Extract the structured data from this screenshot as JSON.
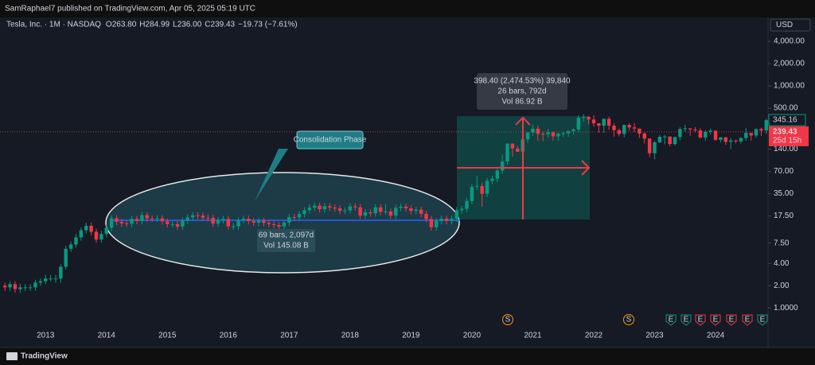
{
  "header": {
    "publisher": "SamRaphael7 published on TradingView.com, Apr 05, 2025 05:19 UTC",
    "symbol": "Tesla, Inc. · 1M · NASDAQ",
    "ohlc": [
      {
        "key": "O",
        "value": "263.80"
      },
      {
        "key": "H",
        "value": "284.99"
      },
      {
        "key": "L",
        "value": "236.00"
      },
      {
        "key": "C",
        "value": "239.43"
      }
    ],
    "change": "−19.73 (−7.61%)",
    "currency": "USD"
  },
  "chart_data": {
    "type": "candlestick",
    "log_scale": true,
    "up_color": "#089981",
    "down_color": "#f23645",
    "categories": [
      null,
      null,
      null,
      null,
      null,
      null,
      null,
      null,
      "2013",
      null,
      null,
      null,
      null,
      null,
      null,
      null,
      null,
      null,
      null,
      null,
      "2014",
      null,
      null,
      null,
      null,
      null,
      null,
      null,
      null,
      null,
      null,
      null,
      "2015",
      null,
      null,
      null,
      null,
      null,
      null,
      null,
      null,
      null,
      null,
      null,
      "2016",
      null,
      null,
      null,
      null,
      null,
      null,
      null,
      null,
      null,
      null,
      null,
      "2017",
      null,
      null,
      null,
      null,
      null,
      null,
      null,
      null,
      null,
      null,
      null,
      "2018",
      null,
      null,
      null,
      null,
      null,
      null,
      null,
      null,
      null,
      null,
      null,
      "2019",
      null,
      null,
      null,
      null,
      null,
      null,
      null,
      null,
      null,
      null,
      null,
      "2020",
      null,
      null,
      null,
      null,
      null,
      null,
      null,
      null,
      null,
      null,
      null,
      "2021",
      null,
      null,
      null,
      null,
      null,
      null,
      null,
      null,
      null,
      null,
      null,
      "2022",
      null,
      null,
      null,
      null,
      null,
      null,
      null,
      null,
      null,
      null,
      null,
      "2023",
      null,
      null,
      null,
      null,
      null,
      null,
      null,
      null,
      null,
      null,
      null,
      "2024",
      null,
      null,
      null,
      null,
      null,
      null,
      null,
      null,
      null,
      null
    ],
    "open": [
      2.0,
      1.9,
      2.1,
      1.8,
      1.9,
      1.9,
      1.9,
      2.2,
      2.3,
      2.5,
      2.5,
      2.5,
      3.6,
      6.3,
      7.2,
      9.0,
      11.2,
      12.9,
      10.7,
      8.4,
      10.0,
      12.1,
      16.3,
      14.6,
      13.9,
      13.8,
      16.0,
      15.0,
      18.0,
      16.2,
      16.1,
      16.3,
      14.8,
      13.6,
      13.6,
      12.6,
      15.1,
      16.7,
      17.9,
      17.7,
      16.6,
      16.5,
      13.8,
      15.4,
      16.0,
      12.7,
      12.7,
      15.3,
      16.1,
      14.9,
      14.2,
      15.1,
      14.1,
      13.6,
      13.2,
      12.6,
      14.2,
      16.9,
      16.7,
      18.6,
      20.9,
      22.7,
      24.1,
      21.6,
      23.7,
      22.7,
      22.1,
      20.6,
      20.8,
      23.6,
      22.9,
      17.7,
      19.6,
      19.0,
      22.9,
      19.9,
      20.1,
      17.7,
      22.5,
      23.4,
      22.2,
      20.5,
      21.3,
      18.7,
      15.9,
      12.3,
      14.9,
      16.1,
      15.0,
      16.1,
      20.9,
      21.9,
      27.9,
      43.4,
      44.5,
      34.9,
      52.1,
      55.7,
      72.0,
      95.4,
      166.1,
      143.0,
      129.3,
      189.2,
      235.2,
      264.5,
      225.2,
      222.6,
      236.5,
      208.4,
      226.6,
      229.1,
      245.2,
      258.5,
      371.3,
      381.6,
      352.3,
      312.2,
      290.1,
      359.2,
      290.3,
      252.8,
      224.5,
      297.1,
      275.6,
      265.3,
      227.5,
      194.7,
      123.2,
      173.2,
      205.7,
      207.5,
      164.3,
      203.9,
      261.8,
      267.4,
      258.1,
      250.2,
      200.8,
      240.1,
      248.5,
      187.3,
      201.9,
      175.8,
      183.3,
      178.1,
      197.9,
      232.1,
      214.1,
      261.6,
      249.9
    ],
    "high": [
      2.2,
      2.3,
      2.3,
      2.1,
      2.1,
      2.1,
      2.4,
      2.5,
      2.8,
      2.8,
      2.8,
      3.9,
      6.9,
      7.9,
      9.9,
      12.3,
      14.2,
      14.2,
      11.8,
      11.0,
      13.3,
      17.9,
      17.9,
      16.1,
      15.3,
      17.6,
      17.6,
      19.8,
      19.8,
      17.8,
      17.9,
      17.9,
      16.3,
      15.0,
      15.0,
      16.6,
      18.4,
      19.7,
      19.7,
      19.5,
      18.3,
      18.2,
      16.9,
      17.6,
      17.6,
      14.0,
      16.8,
      17.7,
      17.7,
      16.4,
      16.6,
      16.6,
      15.5,
      15.0,
      14.5,
      15.6,
      18.6,
      18.6,
      20.5,
      23.0,
      25.0,
      26.5,
      26.5,
      26.1,
      26.1,
      25.0,
      24.3,
      22.9,
      26.0,
      26.0,
      25.2,
      21.6,
      21.6,
      25.2,
      25.2,
      25.5,
      22.1,
      24.8,
      25.7,
      25.7,
      24.4,
      23.4,
      23.4,
      20.6,
      17.5,
      16.4,
      17.7,
      17.7,
      17.7,
      23.0,
      24.1,
      30.7,
      47.7,
      61.0,
      49.0,
      57.3,
      61.3,
      79.2,
      119,
      167.5,
      167.5,
      155,
      202,
      239,
      300,
      293,
      241,
      260,
      241,
      232,
      241,
      250,
      266,
      402,
      414,
      392,
      402,
      315,
      364,
      384,
      315,
      265,
      298,
      314,
      314,
      257,
      237,
      196,
      180,
      217,
      218,
      208,
      204,
      276,
      299,
      267,
      278,
      268,
      252,
      265,
      252,
      205,
      205,
      198,
      187,
      203,
      271,
      232,
      265,
      273,
      361
    ],
    "low": [
      1.7,
      1.7,
      1.6,
      1.6,
      1.7,
      1.7,
      1.7,
      2.0,
      2.1,
      2.3,
      2.2,
      2.2,
      3.3,
      5.7,
      6.5,
      8.1,
      10.1,
      9.6,
      7.6,
      7.6,
      9.0,
      10.9,
      13.1,
      12.5,
      12.4,
      12.4,
      13.5,
      13.5,
      14.6,
      14.5,
      14.5,
      13.3,
      12.2,
      12.2,
      11.3,
      11.3,
      13.6,
      15.0,
      15.9,
      14.9,
      14.9,
      12.4,
      12.4,
      13.9,
      11.4,
      11.4,
      11.4,
      13.8,
      13.4,
      12.8,
      12.8,
      12.7,
      12.2,
      11.9,
      11.3,
      11.3,
      12.8,
      15.0,
      15.0,
      16.7,
      18.8,
      20.4,
      19.4,
      19.4,
      20.4,
      19.9,
      18.5,
      18.5,
      18.7,
      20.6,
      15.9,
      15.9,
      17.1,
      17.1,
      17.9,
      18.1,
      15.9,
      15.9,
      20.3,
      20.0,
      18.5,
      18.5,
      16.8,
      14.3,
      11.1,
      11.1,
      13.4,
      13.5,
      13.5,
      14.5,
      18.8,
      19.7,
      25.1,
      39.1,
      23.4,
      31.4,
      46.9,
      50.1,
      64.8,
      86.0,
      110,
      129,
      116,
      170,
      212,
      180,
      180,
      200,
      182,
      182,
      204,
      206,
      221,
      233,
      326,
      302,
      281,
      233,
      232,
      256,
      207,
      208,
      202,
      248,
      238,
      198,
      167,
      109,
      102,
      169,
      163,
      153,
      156,
      184,
      241,
      212,
      235,
      195,
      181,
      218,
      180,
      173,
      160,
      139,
      168,
      167,
      182,
      182,
      200,
      212,
      225
    ],
    "close": [
      1.9,
      2.1,
      1.8,
      1.9,
      1.9,
      1.9,
      2.2,
      2.3,
      2.5,
      2.5,
      2.5,
      3.6,
      6.3,
      7.2,
      9.0,
      11.2,
      12.9,
      10.7,
      8.4,
      10.0,
      12.1,
      16.3,
      14.6,
      13.9,
      13.8,
      16.0,
      15.0,
      18.0,
      16.2,
      16.1,
      16.3,
      14.8,
      13.6,
      13.6,
      12.6,
      15.1,
      16.7,
      17.9,
      17.7,
      16.6,
      16.5,
      13.8,
      15.4,
      16.0,
      12.7,
      12.7,
      15.3,
      16.1,
      14.9,
      14.2,
      15.1,
      14.1,
      13.6,
      13.2,
      12.6,
      14.2,
      16.9,
      16.7,
      18.6,
      20.9,
      22.7,
      24.1,
      21.6,
      23.7,
      22.7,
      22.1,
      20.6,
      20.8,
      23.6,
      22.9,
      17.7,
      19.6,
      19.0,
      22.9,
      19.9,
      20.1,
      17.7,
      22.5,
      23.4,
      22.2,
      20.5,
      21.3,
      18.7,
      15.9,
      12.3,
      14.9,
      16.1,
      15.0,
      16.1,
      20.9,
      21.9,
      27.9,
      43.4,
      44.5,
      34.9,
      52.1,
      55.7,
      72.0,
      95.4,
      166.1,
      143.0,
      129.3,
      189.2,
      235.2,
      264.5,
      225.2,
      222.6,
      236.5,
      208.4,
      226.6,
      229.1,
      245.2,
      258.5,
      371.3,
      381.6,
      352.3,
      312.2,
      290.1,
      359.2,
      290.3,
      252.8,
      224.5,
      297.1,
      275.6,
      265.3,
      227.5,
      194.7,
      123.2,
      173.2,
      205.7,
      207.5,
      164.3,
      203.9,
      261.8,
      267.4,
      258.1,
      250.2,
      200.8,
      240.1,
      248.5,
      187.3,
      201.9,
      175.8,
      183.3,
      178.1,
      197.9,
      232.1,
      214.1,
      261.6,
      249.9,
      345.16
    ],
    "ylim": [
      0.57,
      6900
    ],
    "yticks": [
      {
        "value": 4000,
        "label": "4,000.00"
      },
      {
        "value": 2000,
        "label": "2,000.00"
      },
      {
        "value": 1000,
        "label": "1,000.00"
      },
      {
        "value": 500,
        "label": "500.00"
      },
      {
        "value": 140,
        "label": "140.00"
      },
      {
        "value": 70,
        "label": "70.00"
      },
      {
        "value": 35,
        "label": "35.00"
      },
      {
        "value": 17.5,
        "label": "17.50"
      },
      {
        "value": 7.5,
        "label": "7.50"
      },
      {
        "value": 4,
        "label": "4.00"
      },
      {
        "value": 2,
        "label": "2.00"
      },
      {
        "value": 1,
        "label": "1.0000"
      }
    ],
    "last_price": {
      "value": 345.16,
      "label": "345.16"
    },
    "current_price": {
      "value": 239.43,
      "label": "239.43",
      "countdown": "25d 15h"
    },
    "annotations": {
      "callout": "Consolidation Phase",
      "range_bars": "69 bars, 2,097d",
      "range_volume": "Vol 145.08 B",
      "measure_price": "398.40 (2,474.53%) 39,840",
      "measure_bars": "26 bars, 792d",
      "measure_volume": "Vol 86.92 B"
    },
    "events": [
      "S",
      "S",
      "E",
      "E",
      "E",
      "E",
      "E",
      "E",
      "E"
    ]
  },
  "footer": {
    "brand": "TradingView"
  }
}
